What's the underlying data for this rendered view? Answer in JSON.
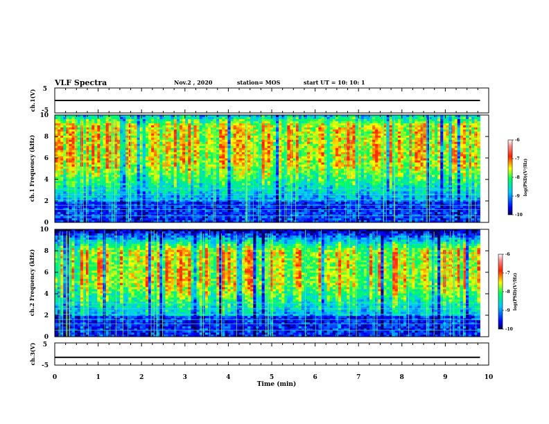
{
  "header": {
    "title": "VLF Spectra",
    "date": "Nov.2 , 2020",
    "station": "station= MOS",
    "start_ut": "start UT = 10: 10: 1"
  },
  "x_axis": {
    "label": "Time (min)",
    "ticks": [
      "0",
      "1",
      "2",
      "3",
      "4",
      "5",
      "6",
      "7",
      "8",
      "9",
      "10"
    ]
  },
  "chart_data": [
    {
      "type": "line",
      "panel": "ch1-waveform",
      "ylabel": "ch.1(V)",
      "xlim": [
        0,
        10
      ],
      "ylim": [
        -5,
        5
      ],
      "y_ticks": [
        "5",
        "-5"
      ],
      "series": [
        {
          "x": [
            0,
            9.8
          ],
          "values": [
            0,
            0
          ]
        }
      ]
    },
    {
      "type": "heatmap",
      "panel": "ch1-spectrogram",
      "ylabel": "ch.1 Frequency (kHz)",
      "xlim": [
        0,
        9.8
      ],
      "ylim": [
        0,
        10
      ],
      "y_ticks": [
        "0",
        "2",
        "4",
        "6",
        "8",
        "10"
      ],
      "colorbar": {
        "label": "log(PSD)(V²/Hz)",
        "range": [
          -10,
          -6
        ],
        "ticks": [
          "-6",
          "-7",
          "-8",
          "-9",
          "-10"
        ]
      },
      "intensity_band_khz": [
        5.5,
        9
      ]
    },
    {
      "type": "heatmap",
      "panel": "ch2-spectrogram",
      "ylabel": "ch.2 Frequency (kHz)",
      "xlim": [
        0,
        9.8
      ],
      "ylim": [
        0,
        10
      ],
      "y_ticks": [
        "0",
        "2",
        "4",
        "6",
        "8",
        "10"
      ],
      "colorbar": {
        "label": "log(PSD)(V²/Hz)",
        "range": [
          -10,
          -6
        ],
        "ticks": [
          "-6",
          "-7",
          "-8",
          "-9",
          "-10"
        ]
      },
      "intensity_band_khz": [
        5,
        8
      ]
    },
    {
      "type": "line",
      "panel": "ch3-waveform",
      "ylabel": "ch.3(V)",
      "xlim": [
        0,
        10
      ],
      "ylim": [
        -5,
        5
      ],
      "y_ticks": [
        "5",
        "-5"
      ],
      "series": [
        {
          "x": [
            0,
            9.8
          ],
          "values": [
            -1.5,
            -1.5
          ]
        }
      ]
    }
  ]
}
